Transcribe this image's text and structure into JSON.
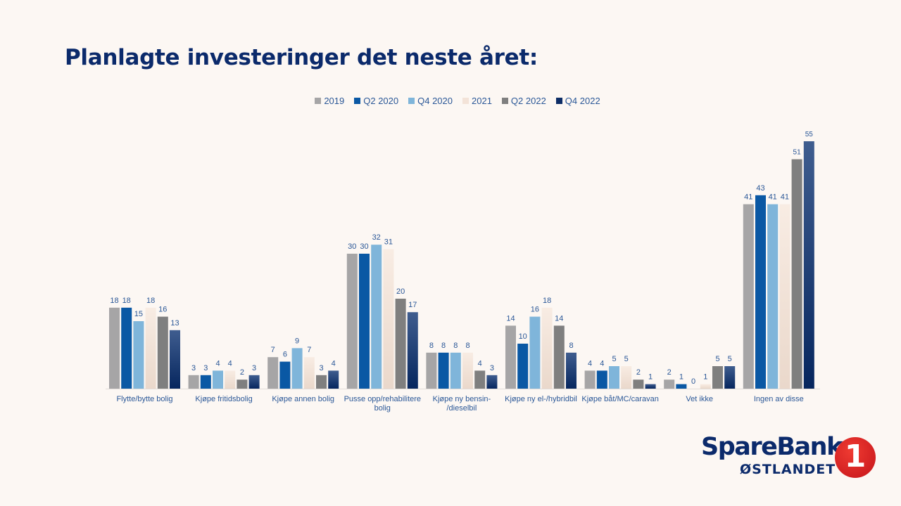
{
  "title": "Planlagte investeringer det neste året:",
  "logo": {
    "line1": "SpareBank",
    "line2": "ØSTLANDET",
    "mark": "1"
  },
  "colors": {
    "background": "#fcf7f3",
    "title": "#0b2a6b",
    "label": "#2a5797",
    "series": [
      "#a6a5a6",
      "#0a58a4",
      "#7fb5da",
      "#f3e3d8",
      "#7f7f7f",
      "#0d2d66"
    ]
  },
  "chart_data": {
    "type": "bar",
    "title": "Planlagte investeringer det neste året:",
    "xlabel": "",
    "ylabel": "",
    "ylim": [
      0,
      55
    ],
    "grid": false,
    "legend_position": "top-center",
    "categories": [
      "Flytte/bytte bolig",
      "Kjøpe fritidsbolig",
      "Kjøpe annen bolig",
      "Pusse opp/rehabilitere bolig",
      "Kjøpe ny bensin- /dieselbil",
      "Kjøpe ny el-/hybridbil",
      "Kjøpe båt/MC/caravan",
      "Vet ikke",
      "Ingen av disse"
    ],
    "category_lines": [
      [
        "Flytte/bytte bolig"
      ],
      [
        "Kjøpe fritidsbolig"
      ],
      [
        "Kjøpe annen bolig"
      ],
      [
        "Pusse opp/rehabilitere",
        "bolig"
      ],
      [
        "Kjøpe ny bensin-",
        "/dieselbil"
      ],
      [
        "Kjøpe ny el-/hybridbil"
      ],
      [
        "Kjøpe båt/MC/caravan"
      ],
      [
        "Vet ikke"
      ],
      [
        "Ingen av disse"
      ]
    ],
    "series": [
      {
        "name": "2019",
        "values": [
          18,
          3,
          7,
          30,
          8,
          14,
          4,
          2,
          41
        ]
      },
      {
        "name": "Q2 2020",
        "values": [
          18,
          3,
          6,
          30,
          8,
          10,
          4,
          1,
          43
        ]
      },
      {
        "name": "Q4 2020",
        "values": [
          15,
          4,
          9,
          32,
          8,
          16,
          5,
          0,
          41
        ]
      },
      {
        "name": "2021",
        "values": [
          18,
          4,
          7,
          31,
          8,
          18,
          5,
          1,
          41
        ]
      },
      {
        "name": "Q2 2022",
        "values": [
          16,
          2,
          3,
          20,
          4,
          14,
          2,
          5,
          51
        ]
      },
      {
        "name": "Q4 2022",
        "values": [
          13,
          3,
          4,
          17,
          3,
          8,
          1,
          5,
          55
        ]
      }
    ]
  }
}
